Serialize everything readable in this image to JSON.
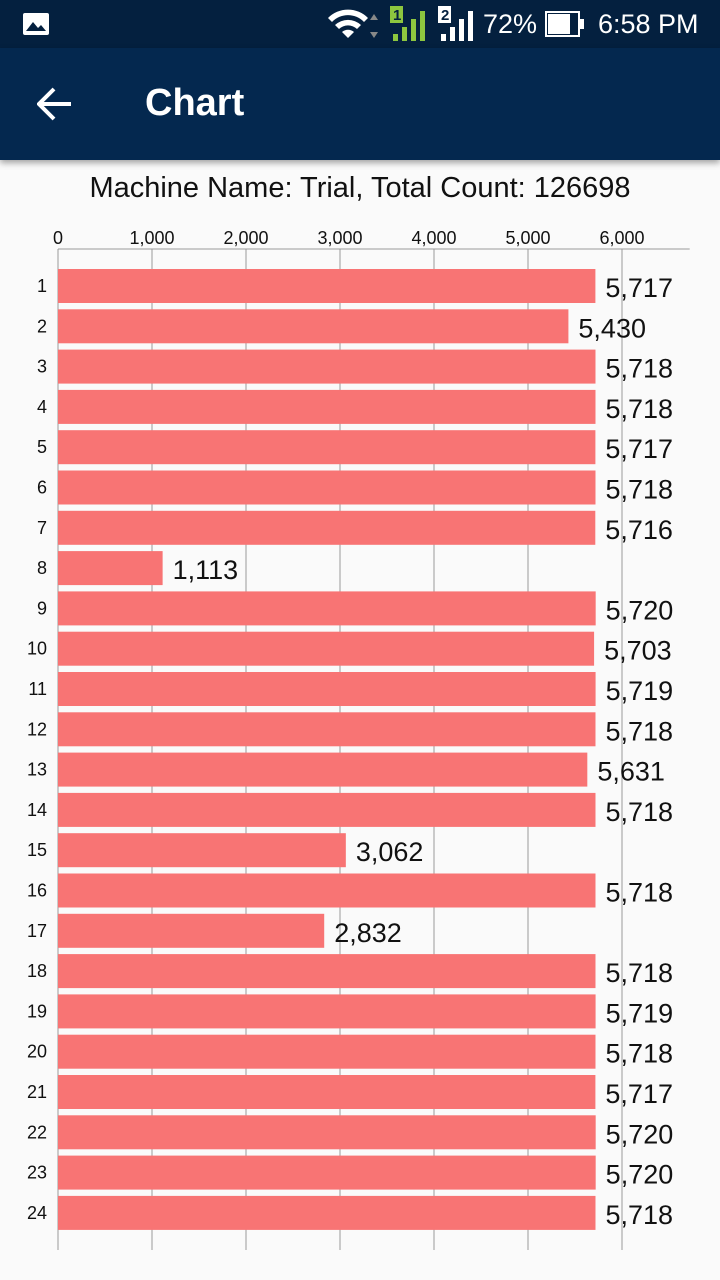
{
  "status_bar": {
    "battery_percent": "72%",
    "time": "6:58 PM",
    "icons": [
      "gallery-icon",
      "wifi-icon",
      "sim1-signal-icon",
      "sim2-signal-icon",
      "battery-icon"
    ],
    "sim1_label": "1",
    "sim2_label": "2"
  },
  "app_bar": {
    "title": "Chart",
    "back_icon": "arrow-left-icon",
    "background": "#04284f"
  },
  "chart_data": {
    "type": "bar",
    "orientation": "horizontal",
    "title": "Machine Name: Trial, Total Count: 126698",
    "categories": [
      "1",
      "2",
      "3",
      "4",
      "5",
      "6",
      "7",
      "8",
      "9",
      "10",
      "11",
      "12",
      "13",
      "14",
      "15",
      "16",
      "17",
      "18",
      "19",
      "20",
      "21",
      "22",
      "23",
      "24"
    ],
    "values": [
      5717,
      5430,
      5718,
      5718,
      5717,
      5718,
      5716,
      1113,
      5720,
      5703,
      5719,
      5718,
      5631,
      5718,
      3062,
      5718,
      2832,
      5718,
      5719,
      5718,
      5717,
      5720,
      5720,
      5718
    ],
    "value_labels": [
      "5,717",
      "5,430",
      "5,718",
      "5,718",
      "5,717",
      "5,718",
      "5,716",
      "1,113",
      "5,720",
      "5,703",
      "5,719",
      "5,718",
      "5,631",
      "5,718",
      "3,062",
      "5,718",
      "2,832",
      "5,718",
      "5,719",
      "5,718",
      "5,717",
      "5,720",
      "5,720",
      "5,718"
    ],
    "x_ticks": [
      0,
      1000,
      2000,
      3000,
      4000,
      5000,
      6000
    ],
    "x_tick_labels": [
      "0",
      "1,000",
      "2,000",
      "3,000",
      "4,000",
      "5,000",
      "6,000"
    ],
    "xlim": [
      0,
      6720
    ],
    "axis_position": "top",
    "grid": true,
    "bar_color": "#f87474"
  }
}
